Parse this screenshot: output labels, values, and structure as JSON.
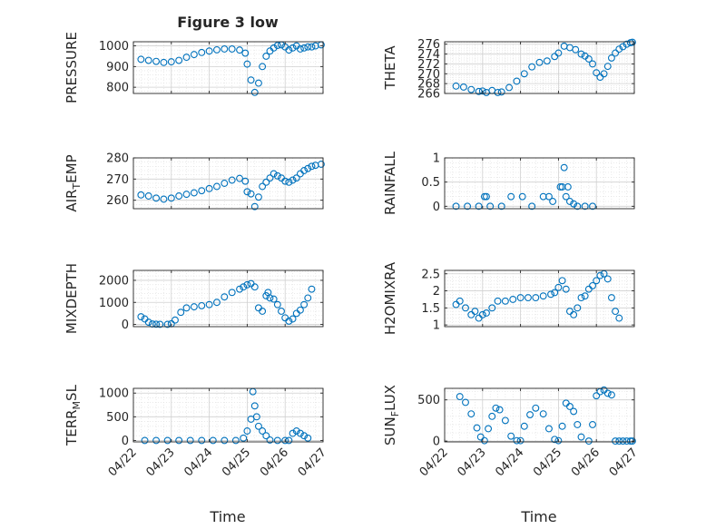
{
  "chart_data": {
    "type": "scatter",
    "title": "Figure 3 low",
    "xlabel": "Time",
    "x_tick_labels": [
      "04/22",
      "04/23",
      "04/24",
      "04/25",
      "04/26",
      "04/27"
    ],
    "marker_color": "#0072BD",
    "grid": "minor",
    "panels": [
      {
        "id": "pressure",
        "ylabel": "PRESSURE",
        "ylim": [
          770,
          1020
        ],
        "yticks": [
          800,
          900,
          1000
        ],
        "x": [
          0.2,
          0.4,
          0.6,
          0.8,
          1.0,
          1.2,
          1.4,
          1.6,
          1.8,
          2.0,
          2.2,
          2.4,
          2.6,
          2.8,
          2.95,
          3.0,
          3.1,
          3.2,
          3.3,
          3.4,
          3.5,
          3.6,
          3.7,
          3.8,
          3.9,
          4.0,
          4.1,
          4.2,
          4.3,
          4.4,
          4.5,
          4.6,
          4.7,
          4.8,
          4.95
        ],
        "y": [
          935,
          930,
          925,
          920,
          923,
          930,
          945,
          958,
          968,
          975,
          981,
          985,
          985,
          980,
          965,
          912,
          835,
          775,
          820,
          900,
          950,
          975,
          990,
          1002,
          1005,
          995,
          980,
          990,
          1000,
          985,
          990,
          995,
          995,
          1000,
          1005
        ]
      },
      {
        "id": "theta",
        "ylabel": "THETA",
        "ylim": [
          266,
          276.5
        ],
        "yticks": [
          266,
          268,
          270,
          272,
          274,
          276
        ],
        "x": [
          0.3,
          0.5,
          0.7,
          0.9,
          1.0,
          1.1,
          1.25,
          1.4,
          1.5,
          1.7,
          1.9,
          2.1,
          2.3,
          2.5,
          2.7,
          2.9,
          3.0,
          3.15,
          3.3,
          3.45,
          3.6,
          3.7,
          3.8,
          3.9,
          4.0,
          4.1,
          4.2,
          4.3,
          4.4,
          4.5,
          4.6,
          4.7,
          4.8,
          4.9,
          4.95
        ],
        "y": [
          267.5,
          267.3,
          266.8,
          266.4,
          266.5,
          266.2,
          266.6,
          266.2,
          266.3,
          267.2,
          268.5,
          270.0,
          271.4,
          272.3,
          272.6,
          273.5,
          274.2,
          275.6,
          275.3,
          274.9,
          274.0,
          273.6,
          273.0,
          272.0,
          270.2,
          269.3,
          270.0,
          271.5,
          273.2,
          274.2,
          275.0,
          275.5,
          276.0,
          276.3,
          276.4
        ]
      },
      {
        "id": "air_temp",
        "ylabel": "AIR_TEMP",
        "ylim": [
          256,
          280
        ],
        "yticks": [
          260,
          270,
          280
        ],
        "x": [
          0.2,
          0.4,
          0.6,
          0.8,
          1.0,
          1.2,
          1.4,
          1.6,
          1.8,
          2.0,
          2.2,
          2.4,
          2.6,
          2.8,
          2.95,
          3.0,
          3.1,
          3.2,
          3.3,
          3.4,
          3.5,
          3.6,
          3.7,
          3.8,
          3.9,
          4.0,
          4.1,
          4.2,
          4.3,
          4.4,
          4.5,
          4.6,
          4.7,
          4.8,
          4.95
        ],
        "y": [
          262.5,
          262,
          261,
          260.5,
          261,
          262,
          262.8,
          263.5,
          264.5,
          265.5,
          266.5,
          268,
          269.5,
          270.3,
          269.0,
          264.0,
          263.0,
          257.0,
          261.5,
          266.5,
          268.5,
          270.5,
          272.5,
          271.5,
          270.5,
          269.0,
          268.5,
          269.5,
          270.5,
          272.5,
          274.0,
          275.0,
          276.0,
          276.5,
          277.0
        ]
      },
      {
        "id": "rainfall",
        "ylabel": "RAINFALL",
        "ylim": [
          -0.05,
          1.0
        ],
        "yticks": [
          0,
          0.5,
          1
        ],
        "x": [
          0.3,
          0.6,
          0.9,
          1.05,
          1.1,
          1.2,
          1.5,
          1.75,
          2.05,
          2.3,
          2.6,
          2.75,
          2.85,
          3.05,
          3.1,
          3.15,
          3.2,
          3.25,
          3.3,
          3.4,
          3.5,
          3.7,
          3.9
        ],
        "y": [
          0,
          0,
          0,
          0.2,
          0.2,
          0,
          0,
          0.2,
          0.2,
          0,
          0.2,
          0.2,
          0.1,
          0.4,
          0.4,
          0.8,
          0.2,
          0.4,
          0.1,
          0.05,
          0,
          0,
          0
        ]
      },
      {
        "id": "mixdepth",
        "ylabel": "MIXDEPTH",
        "ylim": [
          -100,
          2450
        ],
        "yticks": [
          0,
          1000,
          2000
        ],
        "x": [
          0.2,
          0.3,
          0.4,
          0.5,
          0.6,
          0.7,
          0.9,
          1.0,
          1.1,
          1.25,
          1.4,
          1.6,
          1.8,
          2.0,
          2.2,
          2.4,
          2.6,
          2.8,
          2.9,
          3.0,
          3.1,
          3.2,
          3.3,
          3.4,
          3.5,
          3.55,
          3.6,
          3.7,
          3.8,
          3.9,
          4.0,
          4.1,
          4.2,
          4.3,
          4.4,
          4.5,
          4.6,
          4.7
        ],
        "y": [
          350,
          250,
          100,
          20,
          10,
          5,
          5,
          30,
          200,
          550,
          750,
          800,
          850,
          900,
          1000,
          1250,
          1450,
          1600,
          1700,
          1800,
          1850,
          1700,
          750,
          600,
          1300,
          1450,
          1200,
          1150,
          900,
          600,
          300,
          150,
          250,
          500,
          650,
          900,
          1200,
          1600
        ]
      },
      {
        "id": "h2omixra",
        "ylabel": "H2OMIXRA",
        "ylim": [
          0.95,
          2.6
        ],
        "yticks": [
          1,
          1.5,
          2,
          2.5
        ],
        "x": [
          0.3,
          0.4,
          0.55,
          0.7,
          0.8,
          0.9,
          1.0,
          1.1,
          1.25,
          1.4,
          1.6,
          1.8,
          2.0,
          2.2,
          2.4,
          2.6,
          2.8,
          2.9,
          3.0,
          3.1,
          3.2,
          3.3,
          3.4,
          3.5,
          3.6,
          3.7,
          3.8,
          3.9,
          4.0,
          4.1,
          4.2,
          4.3,
          4.4,
          4.5,
          4.6
        ],
        "y": [
          1.6,
          1.7,
          1.5,
          1.3,
          1.4,
          1.2,
          1.3,
          1.35,
          1.5,
          1.7,
          1.7,
          1.75,
          1.8,
          1.8,
          1.8,
          1.85,
          1.9,
          1.95,
          2.1,
          2.3,
          2.05,
          1.4,
          1.3,
          1.5,
          1.8,
          1.85,
          2.05,
          2.15,
          2.3,
          2.45,
          2.5,
          2.35,
          1.8,
          1.4,
          1.2
        ]
      },
      {
        "id": "terr_msl",
        "ylabel": "TERR_MSL",
        "ylim": [
          -30,
          1100
        ],
        "yticks": [
          0,
          500,
          1000
        ],
        "x": [
          0.3,
          0.6,
          0.9,
          1.2,
          1.5,
          1.8,
          2.1,
          2.4,
          2.7,
          2.9,
          3.0,
          3.1,
          3.15,
          3.2,
          3.25,
          3.3,
          3.4,
          3.5,
          3.6,
          3.8,
          4.0,
          4.1,
          4.2,
          4.3,
          4.4,
          4.5,
          4.6
        ],
        "y": [
          0,
          0,
          0,
          0,
          0,
          0,
          0,
          0,
          0,
          50,
          200,
          450,
          1030,
          730,
          500,
          300,
          200,
          100,
          10,
          0,
          0,
          0,
          150,
          200,
          150,
          100,
          50
        ]
      },
      {
        "id": "sun_flux",
        "ylabel": "SUN_FLUX",
        "ylim": [
          -10,
          640
        ],
        "yticks": [
          0,
          500
        ],
        "x": [
          0.4,
          0.55,
          0.7,
          0.85,
          0.95,
          1.05,
          1.15,
          1.25,
          1.35,
          1.45,
          1.6,
          1.75,
          1.9,
          2.0,
          2.1,
          2.25,
          2.4,
          2.6,
          2.75,
          2.9,
          3.0,
          3.1,
          3.2,
          3.3,
          3.4,
          3.5,
          3.6,
          3.8,
          3.9,
          4.0,
          4.1,
          4.2,
          4.3,
          4.4,
          4.5,
          4.6,
          4.7,
          4.8,
          4.9,
          4.95
        ],
        "y": [
          540,
          470,
          330,
          160,
          50,
          5,
          150,
          300,
          400,
          380,
          250,
          60,
          5,
          5,
          180,
          320,
          400,
          330,
          150,
          20,
          5,
          180,
          460,
          420,
          360,
          200,
          50,
          0,
          200,
          550,
          600,
          620,
          580,
          560,
          0,
          0,
          0,
          0,
          0,
          0
        ]
      }
    ]
  }
}
